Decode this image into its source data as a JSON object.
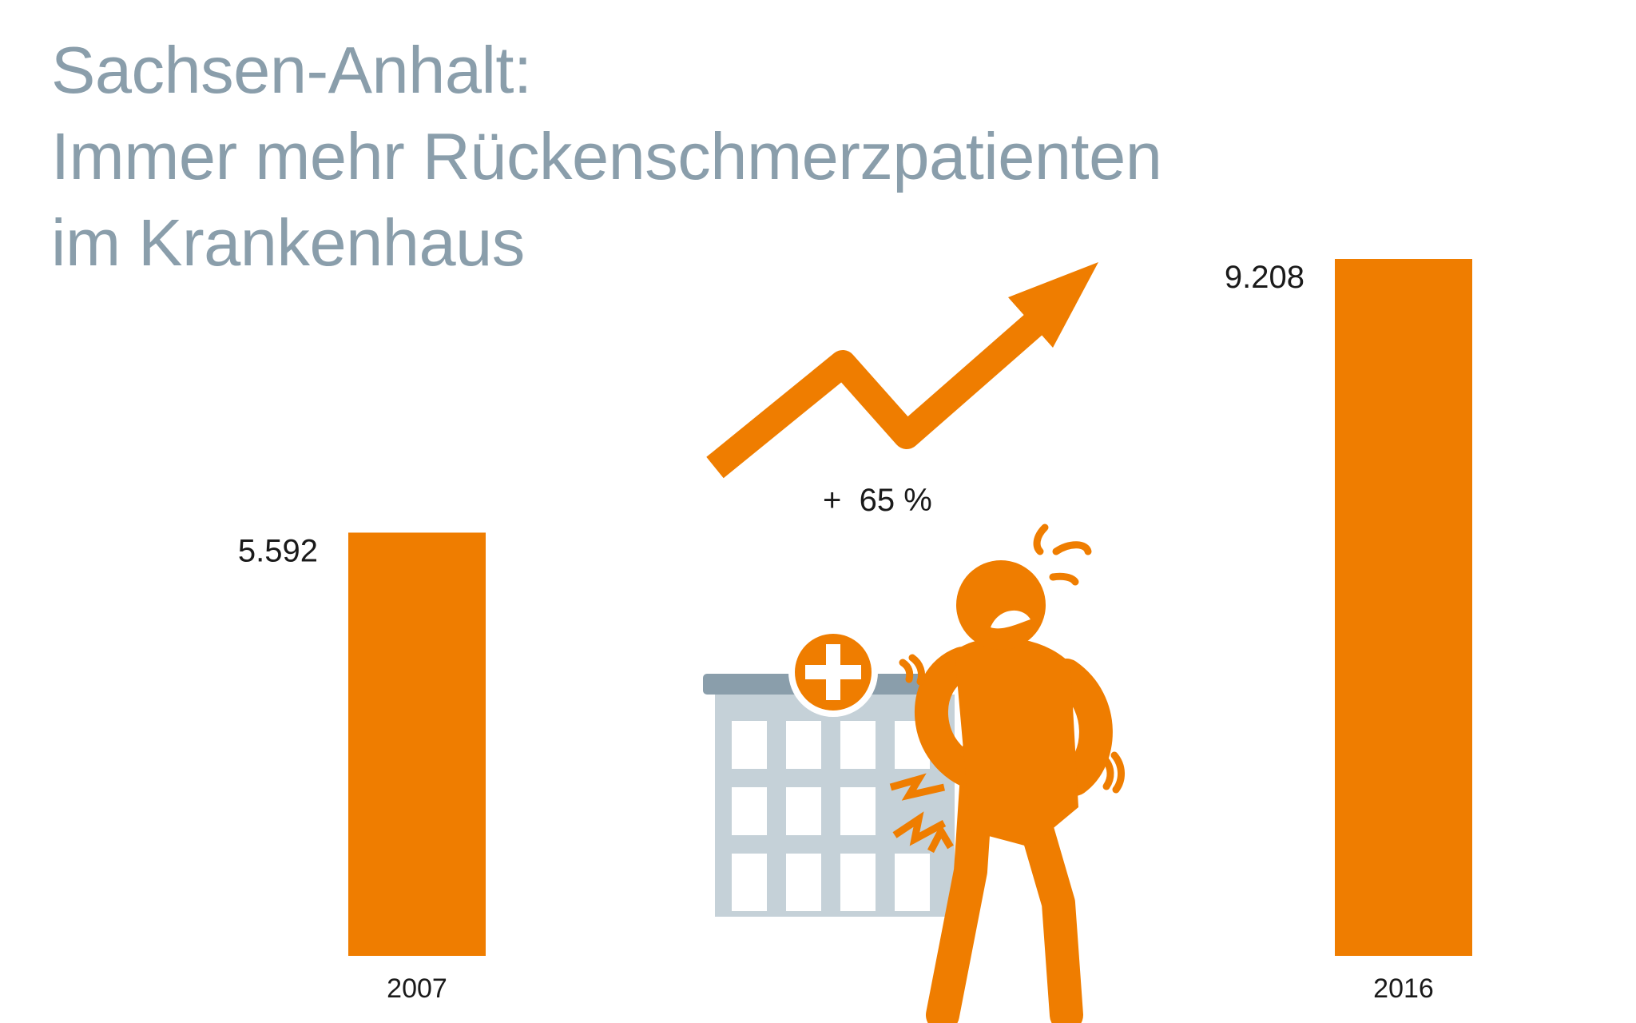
{
  "title_lines": [
    "Sachsen-Anhalt:",
    "Immer mehr Rückenschmerzpatienten",
    "im Krankenhaus"
  ],
  "change_label": "+  65 %",
  "colors": {
    "title": "#8a9eab",
    "bar": "#ef7d00",
    "building": "#c5d1d8",
    "building_roof": "#8a9eab"
  },
  "icons": [
    "trend-arrow-icon",
    "hospital-icon",
    "back-pain-person-icon"
  ],
  "chart_data": {
    "type": "bar",
    "title": "Sachsen-Anhalt: Immer mehr Rückenschmerzpatienten im Krankenhaus",
    "categories": [
      "2007",
      "2016"
    ],
    "values": [
      5592,
      9208
    ],
    "value_labels": [
      "5.592",
      "9.208"
    ],
    "xlabel": "",
    "ylabel": "",
    "ylim": [
      0,
      9208
    ],
    "grid": false,
    "legend": "none",
    "annotation": "+  65 %"
  }
}
